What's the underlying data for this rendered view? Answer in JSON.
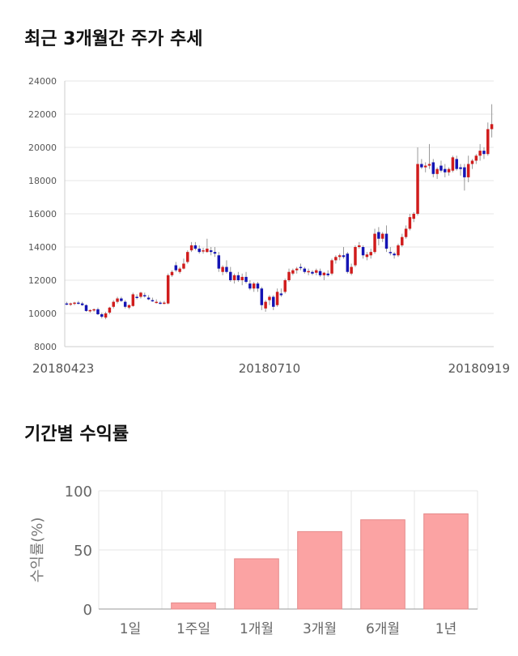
{
  "titles": {
    "price_trend": "최근 3개월간 주가 추세",
    "period_returns": "기간별 수익률"
  },
  "colors": {
    "up": "#d01c1c",
    "down": "#1414b4",
    "bar": "#fba3a3",
    "bar_stroke": "#e58a8a"
  },
  "chart_data": [
    {
      "type": "candlestick",
      "title": "최근 3개월간 주가 추세",
      "ylim": [
        8000,
        24000
      ],
      "yticks": [
        8000,
        10000,
        12000,
        14000,
        16000,
        18000,
        20000,
        22000,
        24000
      ],
      "xtick_labels": [
        {
          "index": 0,
          "label": "20180423"
        },
        {
          "index": 52,
          "label": "20180710"
        },
        {
          "index": 101,
          "label": "20180919"
        }
      ],
      "grid": true,
      "ohlc": [
        [
          10600,
          10700,
          10500,
          10550
        ],
        [
          10550,
          10650,
          10450,
          10600
        ],
        [
          10600,
          10700,
          10500,
          10650
        ],
        [
          10650,
          10750,
          10550,
          10600
        ],
        [
          10600,
          10700,
          10450,
          10500
        ],
        [
          10500,
          10550,
          10100,
          10150
        ],
        [
          10150,
          10250,
          10050,
          10200
        ],
        [
          10200,
          10300,
          10100,
          10250
        ],
        [
          10250,
          10350,
          9900,
          9950
        ],
        [
          9950,
          10050,
          9700,
          9800
        ],
        [
          9750,
          10100,
          9650,
          10000
        ],
        [
          10050,
          10400,
          9950,
          10350
        ],
        [
          10400,
          10800,
          10300,
          10700
        ],
        [
          10700,
          11000,
          10600,
          10900
        ],
        [
          10900,
          11000,
          10700,
          10750
        ],
        [
          10700,
          10800,
          10300,
          10400
        ],
        [
          10350,
          10550,
          10250,
          10500
        ],
        [
          10450,
          11250,
          10400,
          11150
        ],
        [
          11000,
          11150,
          10850,
          10950
        ],
        [
          11000,
          11300,
          10900,
          11250
        ],
        [
          11100,
          11250,
          10950,
          11050
        ],
        [
          10950,
          11100,
          10800,
          10850
        ],
        [
          10800,
          10950,
          10700,
          10750
        ],
        [
          10700,
          10850,
          10600,
          10700
        ],
        [
          10650,
          10750,
          10550,
          10600
        ],
        [
          10600,
          10750,
          10550,
          10650
        ],
        [
          10600,
          12400,
          10550,
          12300
        ],
        [
          12300,
          12600,
          12200,
          12500
        ],
        [
          12900,
          13100,
          12500,
          12600
        ],
        [
          12500,
          12800,
          12400,
          12700
        ],
        [
          12700,
          13300,
          12650,
          13000
        ],
        [
          13100,
          13800,
          13000,
          13700
        ],
        [
          13800,
          14300,
          13700,
          14100
        ],
        [
          14100,
          14300,
          13800,
          13900
        ],
        [
          13900,
          14100,
          13600,
          13700
        ],
        [
          13750,
          13950,
          13600,
          13800
        ],
        [
          13700,
          14500,
          13650,
          13900
        ],
        [
          13800,
          14000,
          13500,
          13700
        ],
        [
          13700,
          14000,
          13400,
          13600
        ],
        [
          13500,
          13700,
          12500,
          12700
        ],
        [
          12500,
          12900,
          12300,
          12800
        ],
        [
          12800,
          13200,
          12400,
          12500
        ],
        [
          12500,
          12800,
          11900,
          12000
        ],
        [
          12000,
          12400,
          11800,
          12300
        ],
        [
          12300,
          12500,
          11900,
          12000
        ],
        [
          12000,
          12400,
          11700,
          12200
        ],
        [
          12200,
          12500,
          11800,
          11900
        ],
        [
          11800,
          12000,
          11400,
          11500
        ],
        [
          11500,
          11900,
          11300,
          11800
        ],
        [
          11800,
          11900,
          11300,
          11500
        ],
        [
          11500,
          11600,
          10200,
          10500
        ],
        [
          10300,
          10800,
          10100,
          10700
        ],
        [
          10800,
          11100,
          10500,
          11000
        ],
        [
          11000,
          11100,
          10200,
          10400
        ],
        [
          10500,
          11500,
          10400,
          11300
        ],
        [
          11200,
          11500,
          11000,
          11100
        ],
        [
          11300,
          12100,
          11200,
          12000
        ],
        [
          12000,
          12700,
          11900,
          12500
        ],
        [
          12400,
          12700,
          12300,
          12600
        ],
        [
          12600,
          12800,
          12400,
          12700
        ],
        [
          12800,
          13000,
          12600,
          12750
        ],
        [
          12700,
          12800,
          12400,
          12500
        ],
        [
          12500,
          12700,
          12300,
          12550
        ],
        [
          12500,
          12600,
          12300,
          12400
        ],
        [
          12450,
          12700,
          12300,
          12600
        ],
        [
          12550,
          12700,
          12200,
          12300
        ],
        [
          12300,
          12500,
          12000,
          12450
        ],
        [
          12400,
          12600,
          12200,
          12300
        ],
        [
          12400,
          13300,
          12300,
          13200
        ],
        [
          13200,
          13500,
          13000,
          13400
        ],
        [
          13400,
          13600,
          13200,
          13500
        ],
        [
          13500,
          14000,
          13300,
          13400
        ],
        [
          13600,
          13700,
          12400,
          12500
        ],
        [
          12400,
          13000,
          12300,
          12800
        ],
        [
          12900,
          14100,
          12800,
          14000
        ],
        [
          14000,
          14300,
          13900,
          14100
        ],
        [
          14000,
          14100,
          13300,
          13500
        ],
        [
          13400,
          13700,
          13200,
          13550
        ],
        [
          13500,
          13900,
          13300,
          13700
        ],
        [
          13700,
          15100,
          13600,
          14800
        ],
        [
          14900,
          15200,
          14100,
          14500
        ],
        [
          14500,
          14900,
          14300,
          14800
        ],
        [
          14800,
          15300,
          13700,
          13900
        ],
        [
          13700,
          14000,
          13500,
          13650
        ],
        [
          13600,
          13700,
          13300,
          13500
        ],
        [
          13500,
          14200,
          13400,
          14100
        ],
        [
          14100,
          14800,
          14000,
          14600
        ],
        [
          14600,
          15300,
          14500,
          15100
        ],
        [
          15100,
          16000,
          15000,
          15800
        ],
        [
          15700,
          16100,
          15500,
          16000
        ],
        [
          16000,
          20000,
          15900,
          19000
        ],
        [
          19000,
          19300,
          18700,
          18800
        ],
        [
          18800,
          19100,
          18500,
          18900
        ],
        [
          18900,
          20200,
          18700,
          19000
        ],
        [
          19100,
          19300,
          18200,
          18400
        ],
        [
          18400,
          18800,
          18100,
          18700
        ],
        [
          18900,
          19200,
          18500,
          18600
        ],
        [
          18700,
          19000,
          18200,
          18500
        ],
        [
          18500,
          18800,
          18300,
          18700
        ],
        [
          18600,
          19500,
          18500,
          19400
        ],
        [
          19300,
          19500,
          18600,
          18700
        ],
        [
          18800,
          19000,
          18300,
          18700
        ],
        [
          18800,
          19000,
          17400,
          18200
        ],
        [
          18200,
          19500,
          17900,
          19000
        ]
      ],
      "ohlc_tail": [
        [
          19000,
          19300,
          18700,
          19200
        ],
        [
          19200,
          19600,
          19000,
          19500
        ],
        [
          19500,
          20200,
          19200,
          19800
        ],
        [
          19800,
          20000,
          19300,
          19600
        ],
        [
          19600,
          21500,
          19500,
          21100
        ],
        [
          21100,
          22600,
          20600,
          21400
        ]
      ]
    },
    {
      "type": "bar",
      "title": "기간별 수익률",
      "categories": [
        "1일",
        "1주일",
        "1개월",
        "3개월",
        "6개월",
        "1년"
      ],
      "values": [
        0,
        5.2,
        42.5,
        65.5,
        75.5,
        80.5
      ],
      "ylabel": "수익률(%)",
      "ylim": [
        0,
        100
      ],
      "yticks": [
        0,
        50,
        100
      ],
      "grid": true
    }
  ]
}
